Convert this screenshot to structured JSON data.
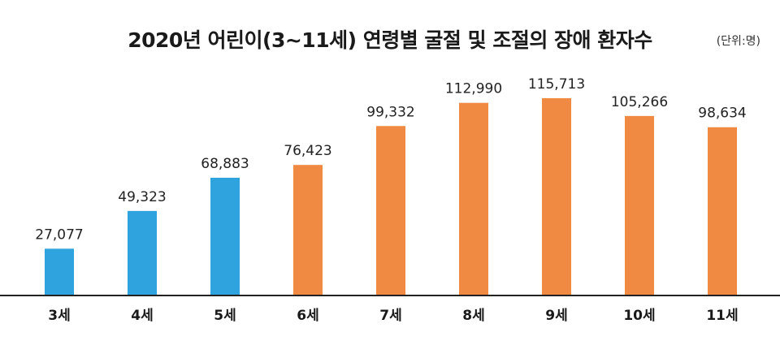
{
  "chart_data": {
    "type": "bar",
    "title": "2020년 어린이(3~11세) 연령별 굴절 및 조절의 장애 환자수",
    "unit_label": "(단위:명)",
    "categories": [
      "3세",
      "4세",
      "5세",
      "6세",
      "7세",
      "8세",
      "9세",
      "10세",
      "11세"
    ],
    "values": [
      27077,
      49323,
      68883,
      76423,
      99332,
      112990,
      115713,
      105266,
      98634
    ],
    "value_labels": [
      "27,077",
      "49,323",
      "68,883",
      "76,423",
      "99,332",
      "112,990",
      "115,713",
      "105,266",
      "98,634"
    ],
    "bar_colors": [
      "#2ea3de",
      "#2ea3de",
      "#2ea3de",
      "#f08a43",
      "#f08a43",
      "#f08a43",
      "#f08a43",
      "#f08a43",
      "#f08a43"
    ],
    "ylim": [
      0,
      120000
    ],
    "grid": false,
    "xlabel": "",
    "ylabel": ""
  }
}
